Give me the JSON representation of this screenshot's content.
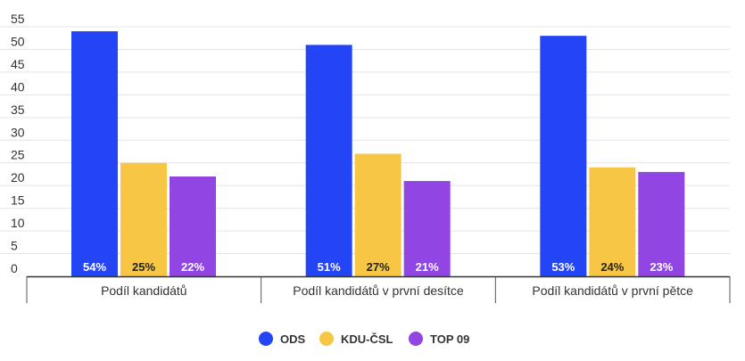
{
  "chart_data": {
    "type": "bar",
    "title": "",
    "xlabel": "",
    "ylabel": "",
    "ylim": [
      0,
      55
    ],
    "yticks": [
      0,
      5,
      10,
      15,
      20,
      25,
      30,
      35,
      40,
      45,
      50,
      55
    ],
    "grid": true,
    "legend_position": "bottom",
    "categories": [
      "Podíl kandidátů",
      "Podíl kandidátů v první desítce",
      "Podíl kandidátů v první pětce"
    ],
    "series": [
      {
        "name": "ODS",
        "color": "#2445f5",
        "label_color": "#ffffff",
        "values": [
          54,
          51,
          53
        ],
        "labels": [
          "54%",
          "51%",
          "53%"
        ]
      },
      {
        "name": "KDU-ČSL",
        "color": "#f7c644",
        "label_color": "#222222",
        "values": [
          25,
          27,
          24
        ],
        "labels": [
          "25%",
          "27%",
          "24%"
        ]
      },
      {
        "name": "TOP 09",
        "color": "#9145e2",
        "label_color": "#ffffff",
        "values": [
          22,
          21,
          23
        ],
        "labels": [
          "22%",
          "21%",
          "23%"
        ]
      }
    ]
  }
}
